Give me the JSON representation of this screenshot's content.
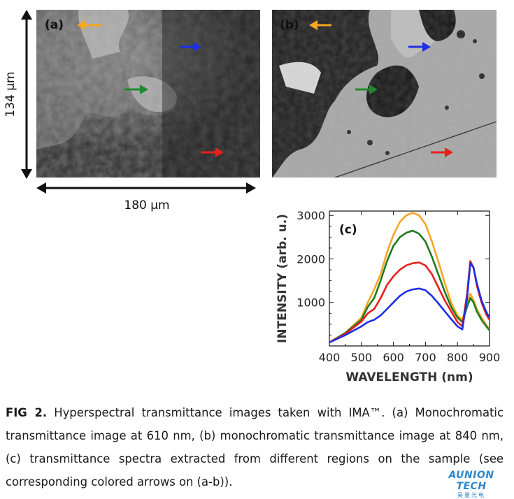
{
  "figure": {
    "panel_a": {
      "label": "(a)"
    },
    "panel_b": {
      "label": "(b)"
    },
    "scale": {
      "vertical": "134 μm",
      "horizontal": "180 μm"
    },
    "arrows": [
      {
        "name": "orange-arrow",
        "color": "#f5a623"
      },
      {
        "name": "blue-arrow",
        "color": "#1f2ee6"
      },
      {
        "name": "green-arrow",
        "color": "#1f8a2a"
      },
      {
        "name": "red-arrow",
        "color": "#e8201c"
      }
    ]
  },
  "chart_data": {
    "type": "line",
    "panel_label": "(c)",
    "xlabel": "WAVELENGTH (nm)",
    "ylabel": "INTENSITY (arb. u.)",
    "xlim": [
      400,
      900
    ],
    "ylim": [
      0,
      3100
    ],
    "xticks": [
      400,
      500,
      600,
      700,
      800,
      900
    ],
    "yticks": [
      1000,
      2000,
      3000
    ],
    "grid": false,
    "series": [
      {
        "color": "#f5a623",
        "x": [
          400,
          450,
          500,
          520,
          540,
          560,
          580,
          600,
          620,
          640,
          660,
          680,
          700,
          720,
          740,
          760,
          780,
          800,
          815,
          830,
          840,
          850,
          860,
          875,
          890,
          900
        ],
        "values": [
          80,
          300,
          650,
          1000,
          1300,
          1650,
          2150,
          2550,
          2850,
          3000,
          3060,
          3000,
          2800,
          2400,
          1950,
          1450,
          1000,
          700,
          600,
          950,
          1200,
          1050,
          850,
          650,
          480,
          380
        ]
      },
      {
        "color": "#1f7a1f",
        "x": [
          400,
          450,
          500,
          520,
          540,
          560,
          580,
          600,
          620,
          640,
          660,
          680,
          700,
          720,
          740,
          760,
          780,
          800,
          815,
          830,
          840,
          850,
          860,
          875,
          890,
          900
        ],
        "values": [
          80,
          300,
          600,
          900,
          1100,
          1500,
          1950,
          2300,
          2500,
          2600,
          2650,
          2580,
          2400,
          2050,
          1650,
          1250,
          900,
          650,
          550,
          900,
          1100,
          1000,
          800,
          600,
          450,
          360
        ]
      },
      {
        "color": "#e8201c",
        "x": [
          400,
          450,
          500,
          520,
          540,
          560,
          580,
          600,
          620,
          640,
          660,
          680,
          700,
          720,
          740,
          760,
          780,
          800,
          815,
          830,
          840,
          850,
          860,
          875,
          890,
          900
        ],
        "values": [
          80,
          280,
          560,
          750,
          850,
          1100,
          1400,
          1600,
          1750,
          1850,
          1900,
          1920,
          1850,
          1650,
          1350,
          1050,
          800,
          550,
          450,
          1200,
          1950,
          1800,
          1400,
          1000,
          720,
          600
        ]
      },
      {
        "color": "#1f2ee6",
        "x": [
          400,
          450,
          500,
          520,
          540,
          560,
          580,
          600,
          620,
          640,
          660,
          680,
          700,
          720,
          740,
          760,
          780,
          800,
          815,
          830,
          840,
          850,
          860,
          875,
          890,
          900
        ],
        "values": [
          80,
          250,
          450,
          550,
          600,
          700,
          850,
          1000,
          1150,
          1250,
          1300,
          1320,
          1280,
          1150,
          980,
          800,
          620,
          450,
          380,
          1100,
          1900,
          1800,
          1450,
          1050,
          780,
          650
        ]
      }
    ]
  },
  "caption": {
    "fig_label": "FIG 2.",
    "text": " Hyperspectral transmittance images taken with IMA™. (a) Monochromatic transmittance image at 610 nm, (b) monochromatic transmittance image at 840 nm, (c) transmittance spectra extracted from different regions on the sample (see corresponding colored arrows on (a-b))."
  },
  "logo": {
    "main": "AUNION TECH",
    "sub": "昊量光电"
  }
}
